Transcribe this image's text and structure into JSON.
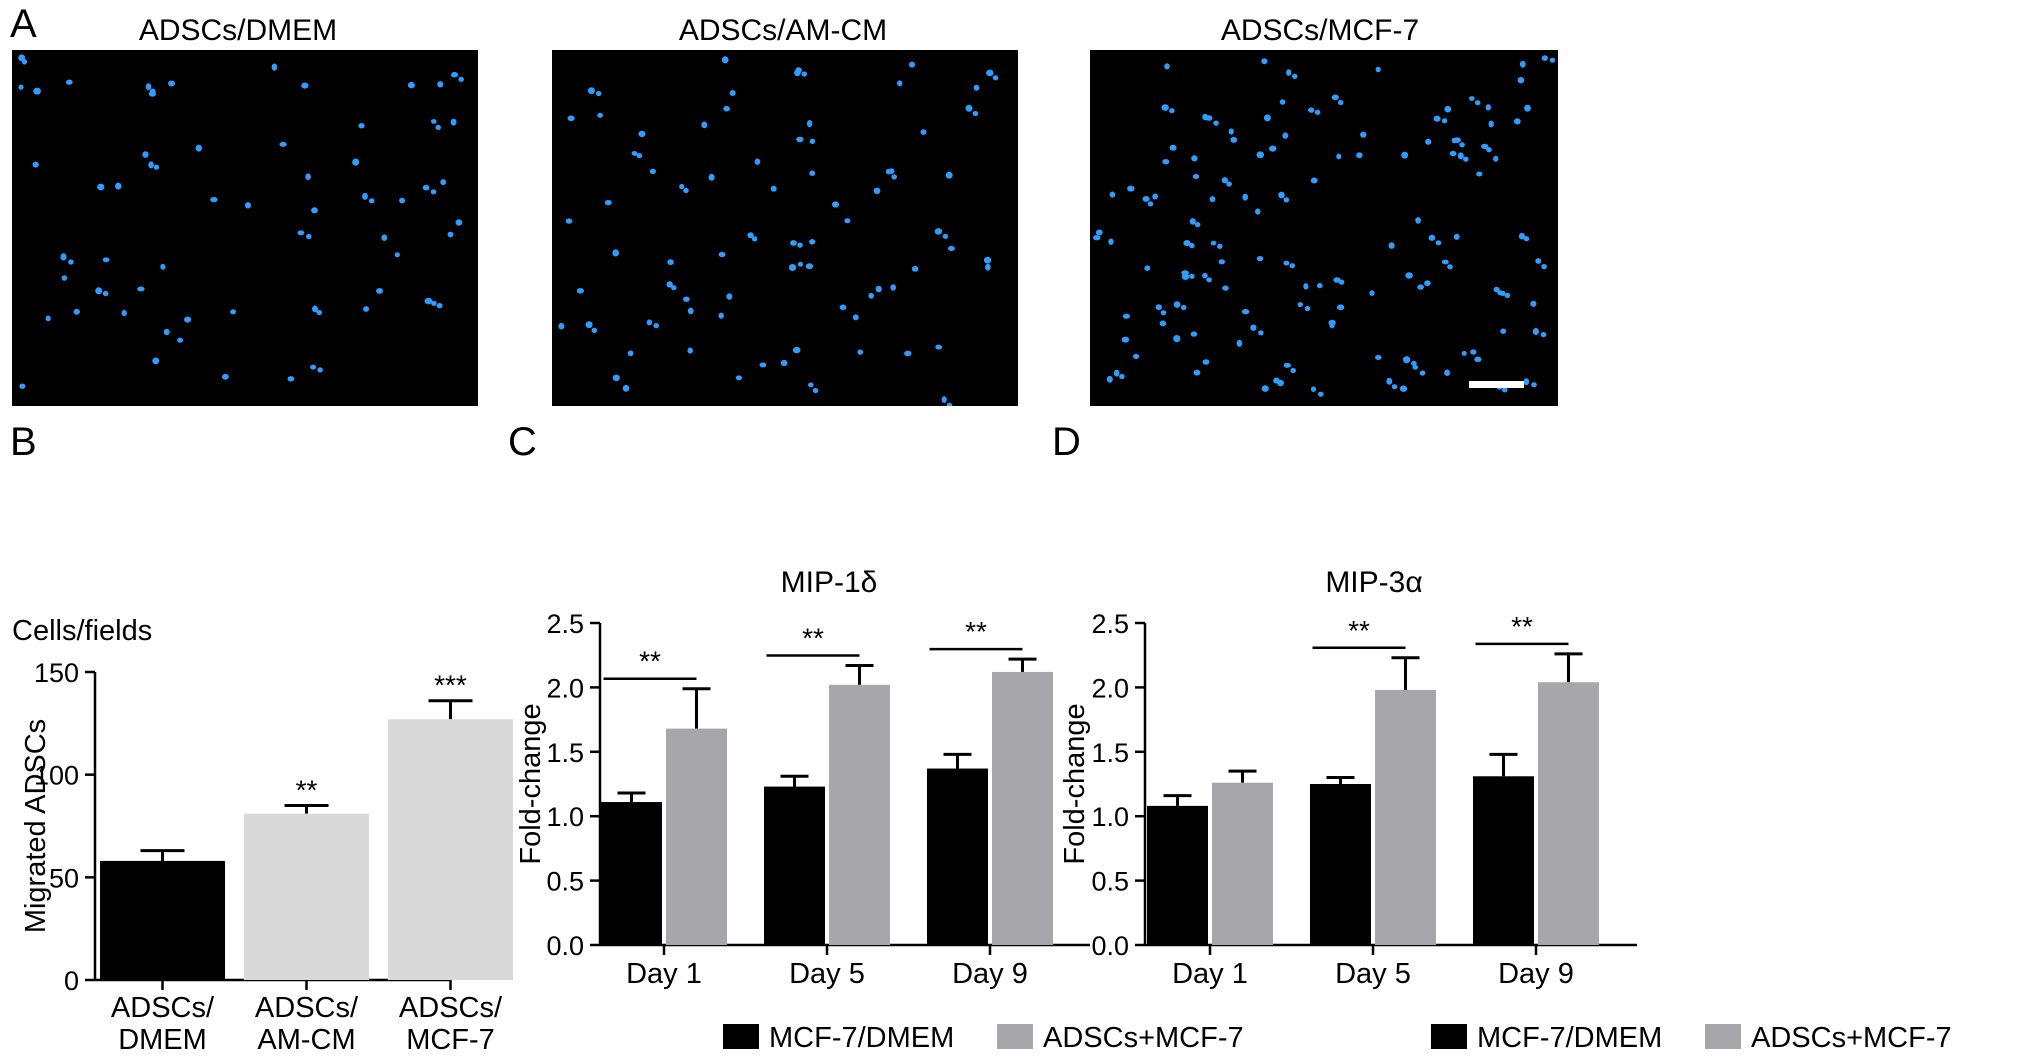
{
  "panel_letters": {
    "a": "A",
    "b": "B",
    "c": "C",
    "d": "D"
  },
  "micrographs": [
    {
      "title": "ADSCs/DMEM"
    },
    {
      "title": "ADSCs/AM-CM"
    },
    {
      "title": "ADSCs/MCF-7",
      "scale_bar": true
    }
  ],
  "colors": {
    "black_bar": "#000000",
    "light_gray_bar": "#d9d9d9",
    "gray_bar": "#a6a6ab",
    "nucleus": "#2f9dff"
  },
  "chart_data": [
    {
      "type": "bar",
      "title": "",
      "ylabel": "Migrated ADSCs",
      "ylabel_top": "Cells/fields",
      "categories": [
        [
          "ADSCs/",
          "DMEM"
        ],
        [
          "ADSCs/",
          "AM-CM"
        ],
        [
          "ADSCs/",
          "MCF-7"
        ]
      ],
      "values": [
        58,
        81,
        127
      ],
      "errors": [
        5,
        4,
        9
      ],
      "significance": [
        "",
        "**",
        "***"
      ],
      "bar_colors": [
        "#000000",
        "#d9d9d9",
        "#d9d9d9"
      ],
      "ylim": [
        0,
        150
      ],
      "yticks": [
        "0",
        "50",
        "100",
        "150"
      ]
    },
    {
      "type": "bar",
      "title": "MIP-1δ",
      "ylabel": "Fold-change",
      "categories": [
        "Day 1",
        "Day 5",
        "Day 9"
      ],
      "series": [
        {
          "name": "MCF-7/DMEM",
          "values": [
            1.11,
            1.23,
            1.37
          ],
          "errors": [
            0.07,
            0.08,
            0.11
          ],
          "color": "#000000"
        },
        {
          "name": "ADSCs+MCF-7",
          "values": [
            1.68,
            2.02,
            2.12
          ],
          "errors": [
            0.31,
            0.15,
            0.1
          ],
          "color": "#a6a6ab"
        }
      ],
      "significance": [
        "**",
        "**",
        "**"
      ],
      "ylim": [
        0,
        2.5
      ],
      "yticks": [
        "0.0",
        "0.5",
        "1.0",
        "1.5",
        "2.0",
        "2.5"
      ]
    },
    {
      "type": "bar",
      "title": "MIP-3α",
      "ylabel": "Fold-change",
      "categories": [
        "Day 1",
        "Day 5",
        "Day 9"
      ],
      "series": [
        {
          "name": "MCF-7/DMEM",
          "values": [
            1.08,
            1.25,
            1.31
          ],
          "errors": [
            0.08,
            0.05,
            0.17
          ],
          "color": "#000000"
        },
        {
          "name": "ADSCs+MCF-7",
          "values": [
            1.26,
            1.98,
            2.04
          ],
          "errors": [
            0.09,
            0.25,
            0.22
          ],
          "color": "#a6a6ab"
        }
      ],
      "significance": [
        "",
        "**",
        "**"
      ],
      "ylim": [
        0,
        2.5
      ],
      "yticks": [
        "0.0",
        "0.5",
        "1.0",
        "1.5",
        "2.0",
        "2.5"
      ]
    }
  ]
}
